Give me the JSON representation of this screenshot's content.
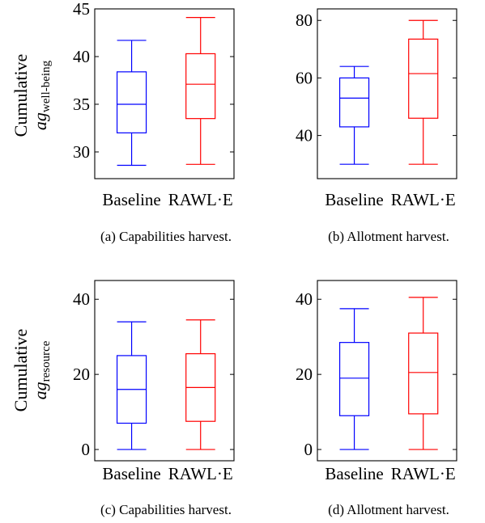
{
  "chart_data": [
    {
      "type": "box",
      "caption": "(a) Capabilities harvest.",
      "ylabel": {
        "line1": "Cumulative",
        "var": "ag",
        "sub": "well-being"
      },
      "ylim": [
        27.2,
        45
      ],
      "yticks": [
        30,
        35,
        40,
        45
      ],
      "categories": [
        "Baseline",
        "RAWL·E"
      ],
      "series": [
        {
          "name": "Baseline",
          "color": "#0000ff",
          "min": 28.6,
          "q1": 32.0,
          "median": 35.0,
          "q3": 38.4,
          "max": 41.7
        },
        {
          "name": "RAWL·E",
          "color": "#ff0000",
          "min": 28.7,
          "q1": 33.5,
          "median": 37.1,
          "q3": 40.3,
          "max": 44.1
        }
      ]
    },
    {
      "type": "box",
      "caption": "(b) Allotment harvest.",
      "ylabel": null,
      "ylim": [
        25,
        84
      ],
      "yticks": [
        40,
        60,
        80
      ],
      "categories": [
        "Baseline",
        "RAWL·E"
      ],
      "series": [
        {
          "name": "Baseline",
          "color": "#0000ff",
          "min": 30,
          "q1": 43,
          "median": 53,
          "q3": 60,
          "max": 64
        },
        {
          "name": "RAWL·E",
          "color": "#ff0000",
          "min": 30,
          "q1": 46,
          "median": 61.5,
          "q3": 73.5,
          "max": 80
        }
      ]
    },
    {
      "type": "box",
      "caption": "(c) Capabilities harvest.",
      "ylabel": {
        "line1": "Cumulative",
        "var": "ag",
        "sub": "resource"
      },
      "ylim": [
        -3,
        45
      ],
      "yticks": [
        0,
        20,
        40
      ],
      "categories": [
        "Baseline",
        "RAWL·E"
      ],
      "series": [
        {
          "name": "Baseline",
          "color": "#0000ff",
          "min": 0,
          "q1": 7,
          "median": 16,
          "q3": 25,
          "max": 34
        },
        {
          "name": "RAWL·E",
          "color": "#ff0000",
          "min": 0,
          "q1": 7.5,
          "median": 16.5,
          "q3": 25.5,
          "max": 34.5
        }
      ]
    },
    {
      "type": "box",
      "caption": "(d) Allotment harvest.",
      "ylabel": null,
      "ylim": [
        -3,
        45
      ],
      "yticks": [
        0,
        20,
        40
      ],
      "categories": [
        "Baseline",
        "RAWL·E"
      ],
      "series": [
        {
          "name": "Baseline",
          "color": "#0000ff",
          "min": 0,
          "q1": 9,
          "median": 19,
          "q3": 28.5,
          "max": 37.5
        },
        {
          "name": "RAWL·E",
          "color": "#ff0000",
          "min": 0,
          "q1": 9.5,
          "median": 20.5,
          "q3": 31,
          "max": 40.5
        }
      ]
    }
  ]
}
